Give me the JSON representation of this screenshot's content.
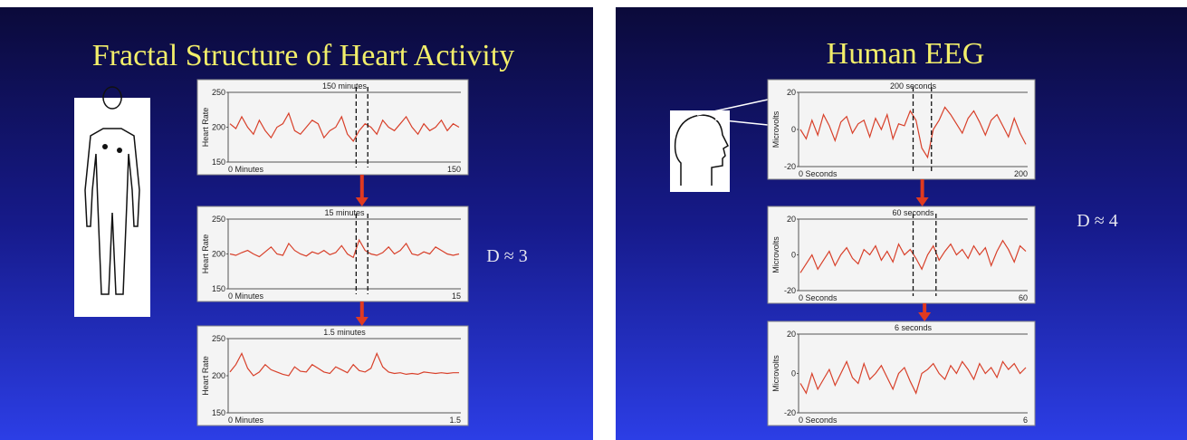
{
  "slides": [
    {
      "title": "Fractal Structure of Heart Activity",
      "dimension": "D ≈ 3",
      "panels": [
        {
          "title": "150 minutes",
          "ylabel": "Heart Rate",
          "xstart": "0 Minutes",
          "xend": "150",
          "ylim": [
            150,
            250
          ],
          "yticks": [
            150,
            200,
            250
          ],
          "values": [
            205,
            198,
            215,
            200,
            190,
            210,
            195,
            185,
            200,
            205,
            220,
            195,
            190,
            200,
            210,
            205,
            185,
            195,
            200,
            215,
            190,
            180,
            195,
            205,
            200,
            190,
            210,
            200,
            195,
            205,
            215,
            200,
            190,
            205,
            195,
            200,
            210,
            195,
            205,
            200
          ]
        },
        {
          "title": "15 minutes",
          "ylabel": "Heart Rate",
          "xstart": "0 Minutes",
          "xend": "15",
          "ylim": [
            150,
            250
          ],
          "yticks": [
            150,
            200,
            250
          ],
          "values": [
            200,
            198,
            202,
            205,
            200,
            196,
            203,
            210,
            200,
            198,
            215,
            205,
            200,
            197,
            203,
            200,
            205,
            199,
            202,
            212,
            200,
            195,
            220,
            205,
            200,
            198,
            202,
            210,
            200,
            205,
            215,
            200,
            198,
            203,
            200,
            210,
            205,
            200,
            198,
            200
          ]
        },
        {
          "title": "1.5 minutes",
          "ylabel": "Heart Rate",
          "xstart": "0 Minutes",
          "xend": "1.5",
          "ylim": [
            150,
            250
          ],
          "yticks": [
            150,
            200,
            250
          ],
          "values": [
            205,
            215,
            230,
            210,
            200,
            205,
            215,
            208,
            205,
            202,
            200,
            212,
            206,
            205,
            215,
            210,
            205,
            203,
            212,
            208,
            204,
            215,
            207,
            205,
            210,
            230,
            212,
            205,
            203,
            204,
            202,
            203,
            202,
            205,
            204,
            203,
            204,
            203,
            204,
            204
          ]
        }
      ]
    },
    {
      "title": "Human EEG",
      "dimension": "D ≈ 4",
      "panels": [
        {
          "title": "200 seconds",
          "ylabel": "Microvolts",
          "xstart": "0 Seconds",
          "xend": "200",
          "ylim": [
            -20,
            20
          ],
          "yticks": [
            -20,
            0,
            20
          ],
          "values": [
            0,
            -5,
            5,
            -3,
            8,
            2,
            -6,
            4,
            7,
            -2,
            3,
            5,
            -4,
            6,
            0,
            8,
            -5,
            3,
            2,
            10,
            5,
            -10,
            -15,
            0,
            5,
            12,
            8,
            3,
            -2,
            6,
            10,
            4,
            -3,
            5,
            8,
            2,
            -4,
            6,
            -2,
            -8
          ]
        },
        {
          "title": "60 seconds",
          "ylabel": "Microvolts",
          "xstart": "0 Seconds",
          "xend": "60",
          "ylim": [
            -20,
            20
          ],
          "yticks": [
            -20,
            0,
            20
          ],
          "values": [
            -10,
            -5,
            0,
            -8,
            -3,
            2,
            -6,
            0,
            4,
            -2,
            -5,
            3,
            0,
            5,
            -3,
            2,
            -4,
            6,
            0,
            3,
            -2,
            -8,
            0,
            5,
            -3,
            2,
            6,
            0,
            3,
            -2,
            5,
            0,
            4,
            -6,
            2,
            8,
            3,
            -4,
            5,
            2
          ]
        },
        {
          "title": "6 seconds",
          "ylabel": "Microvolts",
          "xstart": "0 Seconds",
          "xend": "6",
          "ylim": [
            -20,
            20
          ],
          "yticks": [
            -20,
            0,
            20
          ],
          "values": [
            -5,
            -10,
            0,
            -8,
            -3,
            2,
            -6,
            0,
            6,
            -2,
            -5,
            5,
            -3,
            0,
            4,
            -2,
            -8,
            0,
            3,
            -4,
            -10,
            0,
            2,
            5,
            0,
            -3,
            4,
            0,
            6,
            2,
            -3,
            5,
            0,
            3,
            -2,
            6,
            2,
            5,
            0,
            3
          ]
        }
      ]
    }
  ]
}
